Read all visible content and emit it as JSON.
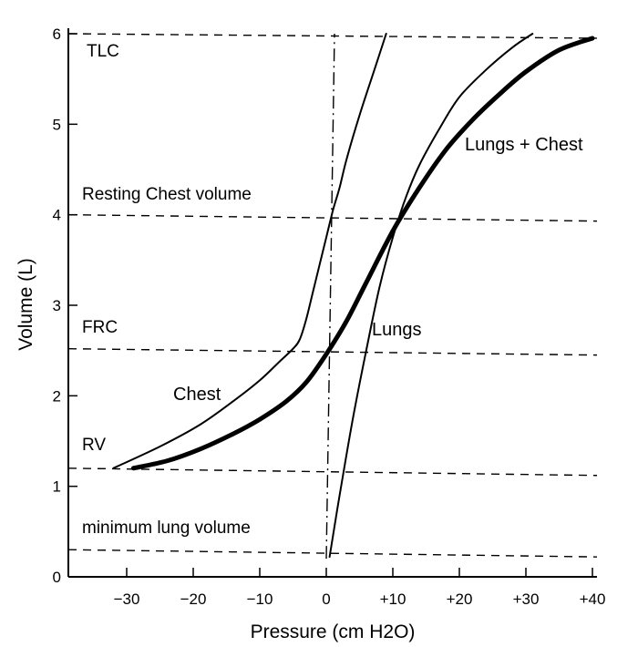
{
  "chart_data": {
    "type": "line",
    "title": "",
    "xlabel": "Pressure (cm H2O)",
    "ylabel": "Volume (L)",
    "xlim": [
      -38,
      40
    ],
    "ylim": [
      0,
      6
    ],
    "x_ticks": [
      -30,
      -20,
      -10,
      0,
      10,
      20,
      30,
      40
    ],
    "x_tick_labels": [
      "−30",
      "−20",
      "−10",
      "0",
      "+10",
      "+20",
      "+30",
      "+40"
    ],
    "y_ticks": [
      0,
      1,
      2,
      3,
      4,
      5,
      6
    ],
    "y_tick_labels": [
      "0",
      "1",
      "2",
      "3",
      "4",
      "5",
      "6"
    ],
    "grid": false,
    "reference_lines": [
      {
        "name": "TLC",
        "label": "TLC",
        "y_start": 6.0,
        "y_end": 5.95
      },
      {
        "name": "Resting Chest volume",
        "label": "Resting Chest volume",
        "y_start": 4.0,
        "y_end": 3.93
      },
      {
        "name": "FRC",
        "label": "FRC",
        "y_start": 2.52,
        "y_end": 2.45
      },
      {
        "name": "RV",
        "label": "RV",
        "y_start": 1.2,
        "y_end": 1.12
      },
      {
        "name": "minimum lung volume",
        "label": "minimum lung volume",
        "y_start": 0.3,
        "y_end": 0.22
      }
    ],
    "zero_pressure_line": {
      "x": 0,
      "y_from": 0.2,
      "y_to": 6.0
    },
    "series": [
      {
        "name": "Chest",
        "label": "Chest",
        "weight": "thin",
        "x": [
          -32,
          -25,
          -19,
          -14,
          -10,
          -7,
          -5,
          -4,
          -3,
          -2,
          -1,
          0,
          1,
          2,
          3,
          5,
          7,
          9
        ],
        "y": [
          1.2,
          1.44,
          1.68,
          1.94,
          2.17,
          2.38,
          2.52,
          2.62,
          2.85,
          3.15,
          3.45,
          3.75,
          4.05,
          4.3,
          4.6,
          5.1,
          5.55,
          6.0
        ]
      },
      {
        "name": "Lungs",
        "label": "Lungs",
        "weight": "thin",
        "x": [
          0.5,
          2,
          4,
          6,
          8,
          10,
          12,
          14,
          17,
          20,
          24,
          28,
          31
        ],
        "y": [
          0.22,
          0.9,
          1.75,
          2.5,
          3.2,
          3.75,
          4.2,
          4.55,
          4.95,
          5.3,
          5.6,
          5.85,
          6.0
        ]
      },
      {
        "name": "Lungs + Chest",
        "label": "Lungs + Chest",
        "weight": "thick",
        "x": [
          -29,
          -24,
          -19,
          -14,
          -10,
          -6,
          -3,
          0,
          3,
          6,
          10,
          14,
          18,
          22,
          26,
          30,
          35,
          40
        ],
        "y": [
          1.2,
          1.28,
          1.41,
          1.58,
          1.74,
          1.94,
          2.15,
          2.46,
          2.82,
          3.25,
          3.82,
          4.3,
          4.72,
          5.05,
          5.33,
          5.58,
          5.82,
          5.95
        ]
      }
    ]
  }
}
